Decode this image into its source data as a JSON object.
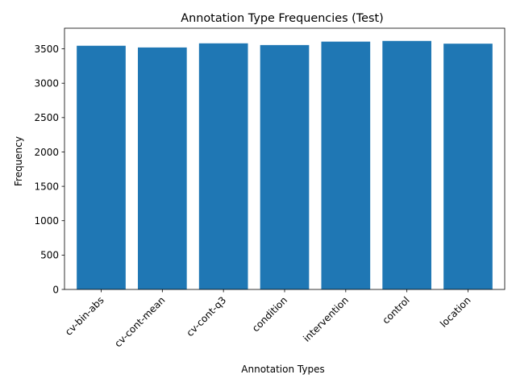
{
  "chart_data": {
    "type": "bar",
    "title": "Annotation Type Frequencies (Test)",
    "xlabel": "Annotation Types",
    "ylabel": "Frequency",
    "categories": [
      "cv-bin-abs",
      "cv-cont-mean",
      "cv-cont-q3",
      "condition",
      "intervention",
      "control",
      "location"
    ],
    "values": [
      3545,
      3520,
      3580,
      3555,
      3605,
      3615,
      3575
    ],
    "ylim": [
      0,
      3800
    ],
    "yticks": [
      0,
      500,
      1000,
      1500,
      2000,
      2500,
      3000,
      3500
    ],
    "bar_color": "#1f77b4",
    "grid": false,
    "x_tick_rotation_deg": 45
  }
}
